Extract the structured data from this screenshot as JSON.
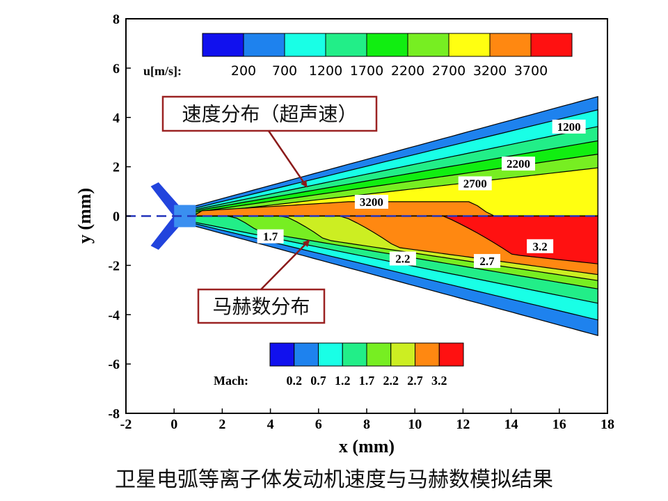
{
  "caption": "卫星电弧等离子体发动机速度与马赫数模拟结果",
  "chart_data": {
    "type": "heatmap",
    "xlabel": "x (mm)",
    "ylabel": "y (mm)",
    "xlim": [
      -2,
      18
    ],
    "ylim": [
      -8,
      8
    ],
    "x_ticks": [
      "-2",
      "0",
      "2",
      "4",
      "6",
      "8",
      "10",
      "12",
      "14",
      "16",
      "18"
    ],
    "y_ticks": [
      "-8",
      "-6",
      "-4",
      "-2",
      "0",
      "2",
      "4",
      "6",
      "8"
    ],
    "grid": false,
    "velocity_legend": {
      "title": "u[m/s]:",
      "levels": [
        "200",
        "700",
        "1200",
        "1700",
        "2200",
        "2700",
        "3200",
        "3700"
      ],
      "colors": [
        "#1111ee",
        "#1e82ee",
        "#19ffe6",
        "#22ee88",
        "#11ee11",
        "#77ee22",
        "#ffff11",
        "#ff8811",
        "#ff1111"
      ]
    },
    "mach_legend": {
      "title": "Mach:",
      "levels": [
        "0.2",
        "0.7",
        "1.2",
        "1.7",
        "2.2",
        "2.7",
        "3.2"
      ],
      "colors": [
        "#1111ee",
        "#1e82ee",
        "#19ffe6",
        "#22ee88",
        "#77ee22",
        "#ccee22",
        "#ff8811",
        "#ff1111"
      ]
    },
    "contour_labels_upper": [
      {
        "text": "1200",
        "x": 16.4,
        "y": 3.6
      },
      {
        "text": "2200",
        "x": 14.3,
        "y": 2.1
      },
      {
        "text": "2700",
        "x": 12.5,
        "y": 1.3
      },
      {
        "text": "3200",
        "x": 8.2,
        "y": 0.55
      }
    ],
    "contour_labels_lower": [
      {
        "text": "1.7",
        "x": 4.0,
        "y": -0.85
      },
      {
        "text": "2.2",
        "x": 9.5,
        "y": -1.75
      },
      {
        "text": "2.7",
        "x": 13.0,
        "y": -1.85
      },
      {
        "text": "3.2",
        "x": 15.2,
        "y": -1.25
      }
    ],
    "annotations": [
      {
        "text": "速度分布（超声速）",
        "arrow_to": [
          5.5,
          1.2
        ]
      },
      {
        "text": "马赫数分布",
        "arrow_to": [
          5.6,
          -1.0
        ]
      }
    ],
    "symmetry_axis_y": 0
  }
}
